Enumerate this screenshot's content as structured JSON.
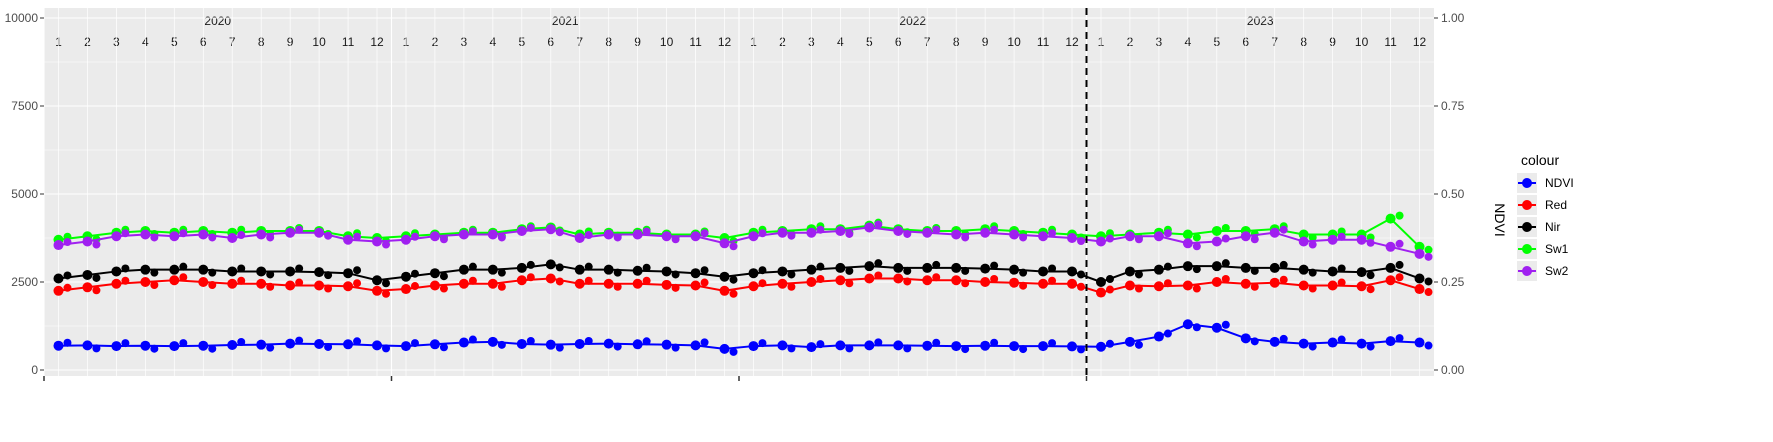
{
  "chart_data": {
    "type": "line",
    "title": "",
    "xlabel": "",
    "ylabel": "",
    "y2label": "NDVI",
    "ylim": [
      0,
      10000
    ],
    "y2lim": [
      0.0,
      1.0
    ],
    "y_ticks": [
      "0",
      "2500",
      "5000",
      "7500",
      "10000"
    ],
    "y2_ticks": [
      "0.00",
      "0.25",
      "0.50",
      "0.75",
      "1.00"
    ],
    "years": [
      "2020",
      "2021",
      "2022",
      "2023"
    ],
    "months": [
      "1",
      "2",
      "3",
      "4",
      "5",
      "6",
      "7",
      "8",
      "9",
      "10",
      "11",
      "12"
    ],
    "vline_at": "2023-01",
    "vline_style": "dashed",
    "grid": true,
    "legend_position": "right",
    "legend_title": "colour",
    "x_unit": "month",
    "x": [
      "2020-01",
      "2020-02",
      "2020-03",
      "2020-04",
      "2020-05",
      "2020-06",
      "2020-07",
      "2020-08",
      "2020-09",
      "2020-10",
      "2020-11",
      "2020-12",
      "2021-01",
      "2021-02",
      "2021-03",
      "2021-04",
      "2021-05",
      "2021-06",
      "2021-07",
      "2021-08",
      "2021-09",
      "2021-10",
      "2021-11",
      "2021-12",
      "2022-01",
      "2022-02",
      "2022-03",
      "2022-04",
      "2022-05",
      "2022-06",
      "2022-07",
      "2022-08",
      "2022-09",
      "2022-10",
      "2022-11",
      "2022-12",
      "2023-01",
      "2023-02",
      "2023-03",
      "2023-04",
      "2023-05",
      "2023-06",
      "2023-07",
      "2023-08",
      "2023-09",
      "2023-10",
      "2023-11",
      "2023-12"
    ],
    "series": [
      {
        "name": "NDVI",
        "color": "#0000ff",
        "axis": "right",
        "values": [
          0.069,
          0.07,
          0.068,
          0.069,
          0.068,
          0.069,
          0.071,
          0.072,
          0.075,
          0.074,
          0.073,
          0.07,
          0.068,
          0.073,
          0.078,
          0.08,
          0.074,
          0.072,
          0.074,
          0.075,
          0.073,
          0.072,
          0.07,
          0.06,
          0.068,
          0.07,
          0.065,
          0.07,
          0.07,
          0.07,
          0.069,
          0.068,
          0.069,
          0.068,
          0.068,
          0.067,
          0.066,
          0.08,
          0.095,
          0.13,
          0.12,
          0.09,
          0.08,
          0.075,
          0.078,
          0.075,
          0.082,
          0.078
        ]
      },
      {
        "name": "Red",
        "color": "#ff0000",
        "axis": "left",
        "values": [
          2250,
          2350,
          2450,
          2500,
          2550,
          2500,
          2450,
          2450,
          2400,
          2400,
          2380,
          2250,
          2300,
          2400,
          2450,
          2450,
          2550,
          2600,
          2450,
          2450,
          2450,
          2420,
          2400,
          2250,
          2380,
          2450,
          2500,
          2550,
          2600,
          2600,
          2550,
          2550,
          2500,
          2480,
          2450,
          2450,
          2200,
          2400,
          2380,
          2400,
          2500,
          2450,
          2480,
          2400,
          2400,
          2380,
          2550,
          2300
        ]
      },
      {
        "name": "Nir",
        "color": "#000000",
        "axis": "left",
        "values": [
          2600,
          2700,
          2800,
          2850,
          2850,
          2850,
          2800,
          2800,
          2800,
          2780,
          2750,
          2550,
          2650,
          2750,
          2850,
          2850,
          2900,
          3000,
          2850,
          2850,
          2820,
          2800,
          2750,
          2650,
          2750,
          2800,
          2850,
          2900,
          2950,
          2900,
          2900,
          2900,
          2880,
          2850,
          2800,
          2800,
          2500,
          2800,
          2850,
          2950,
          2950,
          2900,
          2900,
          2850,
          2800,
          2780,
          2900,
          2600
        ]
      },
      {
        "name": "Sw1",
        "color": "#00ff00",
        "axis": "left",
        "values": [
          3700,
          3800,
          3900,
          3950,
          3900,
          3950,
          3900,
          3950,
          3950,
          3950,
          3800,
          3750,
          3800,
          3850,
          3900,
          3900,
          4000,
          4050,
          3850,
          3900,
          3900,
          3850,
          3850,
          3750,
          3900,
          3950,
          4000,
          4000,
          4100,
          4000,
          3950,
          3950,
          4000,
          3950,
          3900,
          3850,
          3800,
          3850,
          3900,
          3850,
          3950,
          3950,
          4000,
          3850,
          3850,
          3850,
          4300,
          3500
        ]
      },
      {
        "name": "Sw2",
        "color": "#a020f0",
        "axis": "left",
        "values": [
          3550,
          3650,
          3800,
          3850,
          3800,
          3850,
          3750,
          3850,
          3900,
          3900,
          3700,
          3650,
          3700,
          3800,
          3850,
          3850,
          3950,
          4000,
          3750,
          3850,
          3850,
          3800,
          3800,
          3600,
          3800,
          3900,
          3900,
          3950,
          4050,
          3950,
          3900,
          3850,
          3900,
          3850,
          3800,
          3750,
          3650,
          3800,
          3800,
          3600,
          3650,
          3800,
          3900,
          3650,
          3700,
          3700,
          3500,
          3300
        ]
      }
    ]
  }
}
